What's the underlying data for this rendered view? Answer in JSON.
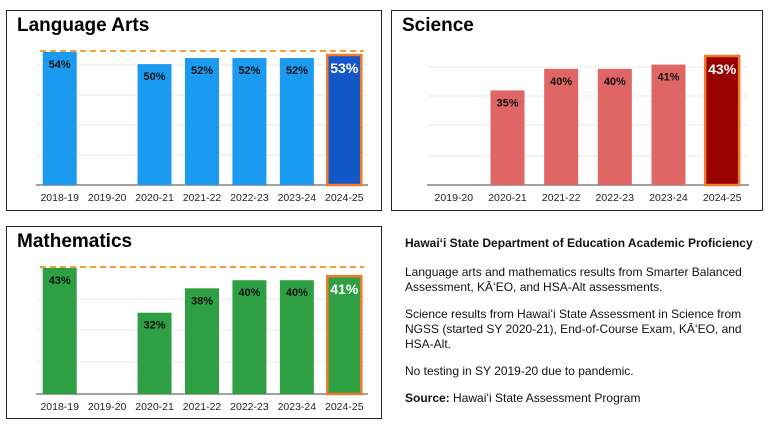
{
  "chart_data": [
    {
      "type": "bar",
      "title": "Language Arts",
      "categories": [
        "2018-19",
        "2019-20",
        "2020-21",
        "2021-22",
        "2022-23",
        "2023-24",
        "2024-25"
      ],
      "values": [
        54,
        null,
        50,
        52,
        52,
        52,
        53
      ],
      "labels": [
        "54%",
        "",
        "50%",
        "52%",
        "52%",
        "52%",
        "53%"
      ],
      "reference_value": 54,
      "colors": {
        "bar": "#1a9bf0",
        "highlight": "#1357c8",
        "highlight_border": "#f07b2c",
        "reference": "#f5a036"
      }
    },
    {
      "type": "bar",
      "title": "Science",
      "categories": [
        "2019-20",
        "2020-21",
        "2021-22",
        "2022-23",
        "2023-24",
        "2024-25"
      ],
      "values": [
        null,
        35,
        40,
        40,
        41,
        43
      ],
      "labels": [
        "",
        "35%",
        "40%",
        "40%",
        "41%",
        "43%"
      ],
      "colors": {
        "bar": "#e06666",
        "highlight": "#990000",
        "highlight_border": "#f07b2c"
      }
    },
    {
      "type": "bar",
      "title": "Mathematics",
      "categories": [
        "2018-19",
        "2019-20",
        "2020-21",
        "2021-22",
        "2022-23",
        "2023-24",
        "2024-25"
      ],
      "values": [
        43,
        null,
        32,
        38,
        40,
        40,
        41
      ],
      "labels": [
        "43%",
        "",
        "32%",
        "38%",
        "40%",
        "40%",
        "41%"
      ],
      "reference_value": 43,
      "colors": {
        "bar": "#2ea043",
        "highlight": "#2ea043",
        "highlight_border": "#f07b2c",
        "reference": "#f5a036"
      }
    }
  ],
  "notes": {
    "title": "Hawaiʻi State Department of Education Academic Proficiency",
    "para1": "Language arts and mathematics results from Smarter Balanced Assessment, KĀʻEO, and HSA-Alt assessments.",
    "para2": "Science results from Hawaiʻi State Assessment in Science from NGSS (started SY 2020-21), End-of-Course Exam, KĀʻEO, and HSA-Alt.",
    "para3": "No testing in SY 2019-20 due to pandemic.",
    "source_label": "Source:",
    "source_text": "Hawaiʻi State Assessment Program"
  }
}
